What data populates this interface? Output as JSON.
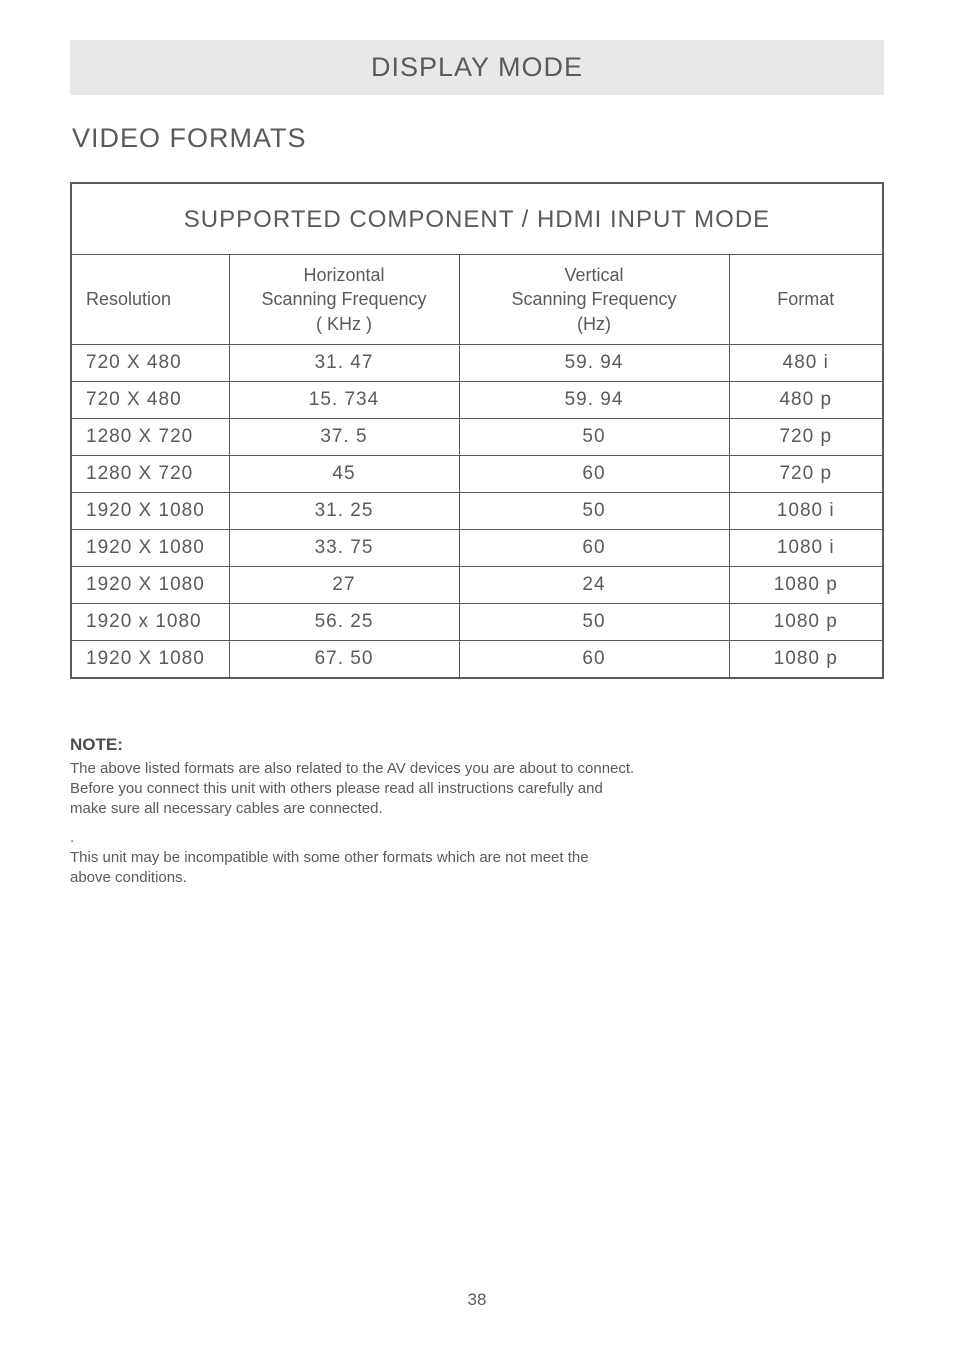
{
  "banner": {
    "title": "DISPLAY MODE"
  },
  "section": {
    "heading": "VIDEO FORMATS"
  },
  "table": {
    "title": "SUPPORTED COMPONENT /  HDMI INPUT MODE",
    "columns": {
      "res": "Resolution",
      "h1": "Horizontal",
      "h2": "Scanning Frequency",
      "h3": "( KHz )",
      "v1": "Vertical",
      "v2": "Scanning Frequency",
      "v3": "(Hz)",
      "fmt": "Format"
    },
    "rows": [
      {
        "res": "720 X 480",
        "h": "31. 47",
        "v": "59. 94",
        "fmt": "480 i"
      },
      {
        "res": "720 X 480",
        "h": "15. 734",
        "v": "59. 94",
        "fmt": "480 p"
      },
      {
        "res": "1280 X 720",
        "h": "37. 5",
        "v": "50",
        "fmt": "720 p"
      },
      {
        "res": "1280 X 720",
        "h": "45",
        "v": "60",
        "fmt": "720 p"
      },
      {
        "res": "1920 X 1080",
        "h": "31. 25",
        "v": "50",
        "fmt": "1080 i"
      },
      {
        "res": "1920 X 1080",
        "h": "33. 75",
        "v": "60",
        "fmt": "1080 i"
      },
      {
        "res": "1920 X 1080",
        "h": "27",
        "v": "24",
        "fmt": "1080 p"
      },
      {
        "res": "1920 x 1080",
        "h": "56. 25",
        "v": "50",
        "fmt": "1080 p"
      },
      {
        "res": "1920 X 1080",
        "h": "67. 50",
        "v": "60",
        "fmt": "1080 p"
      }
    ]
  },
  "note": {
    "label": "NOTE:",
    "p1a": "The above listed formats are also related to the AV devices you are about to connect.",
    "p1b": "Before you connect this unit with others please read all instructions carefully and",
    "p1c": "make sure all necessary cables are connected.",
    "dot": ".",
    "p2a": "This unit may be incompatible with some other formats which are not meet the",
    "p2b": "above conditions."
  },
  "page": {
    "number": "38"
  }
}
